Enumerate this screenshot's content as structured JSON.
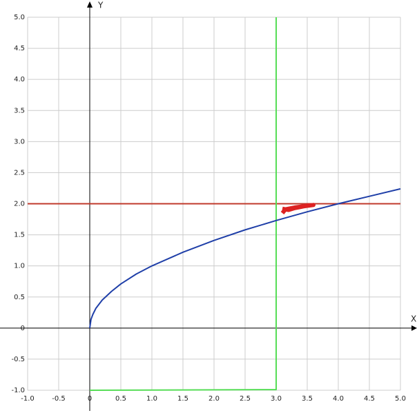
{
  "chart_data": {
    "type": "line",
    "xlabel": "X",
    "ylabel": "Y",
    "xlim": [
      -1,
      5
    ],
    "ylim": [
      -1,
      5
    ],
    "grid": true,
    "xticks": [
      {
        "value": -1,
        "label": "-1.0"
      },
      -0.5,
      0,
      0.5,
      {
        "value": 1,
        "label": "1.0"
      },
      1.5,
      {
        "value": 2,
        "label": "2.0"
      },
      2.5,
      {
        "value": 3,
        "label": "3.0"
      },
      3.5,
      {
        "value": 4,
        "label": "4.0"
      },
      4.5,
      {
        "value": 5,
        "label": "5.0"
      }
    ],
    "yticks": [
      {
        "value": -1,
        "label": "-1.0"
      },
      -0.5,
      0,
      0.5,
      {
        "value": 1,
        "label": "1.0"
      },
      1.5,
      {
        "value": 2,
        "label": "2.0"
      },
      2.5,
      {
        "value": 3,
        "label": "3.0"
      },
      3.5,
      {
        "value": 4,
        "label": "4.0"
      },
      4.5,
      {
        "value": 5,
        "label": "5.0"
      }
    ],
    "series": [
      {
        "color": "#c0392b",
        "width": 2,
        "x": [
          -1,
          5
        ],
        "values": [
          2,
          2
        ]
      },
      {
        "color": "#55dd55",
        "width": 2,
        "x": [
          0,
          3,
          3
        ],
        "values": [
          -1,
          -0.99,
          5
        ]
      },
      {
        "color": "#1f3fa8",
        "width": 2,
        "x": [
          0,
          0.02,
          0.05,
          0.1,
          0.2,
          0.35,
          0.5,
          0.75,
          1,
          1.5,
          2,
          2.5,
          3,
          3.5,
          4,
          4.5,
          5
        ],
        "values": [
          0,
          0.14,
          0.22,
          0.32,
          0.45,
          0.59,
          0.71,
          0.87,
          1,
          1.22,
          1.41,
          1.58,
          1.73,
          1.87,
          2,
          2.12,
          2.24
        ]
      },
      {
        "color": "#dd2222",
        "width": 6,
        "x": [
          3.1,
          3.2,
          3.3,
          3.4,
          3.5,
          3.6,
          3.45,
          3.3,
          3.15,
          3.1
        ],
        "values": [
          1.92,
          1.9,
          1.93,
          1.95,
          1.97,
          1.98,
          1.96,
          1.94,
          1.91,
          1.85
        ]
      }
    ]
  }
}
